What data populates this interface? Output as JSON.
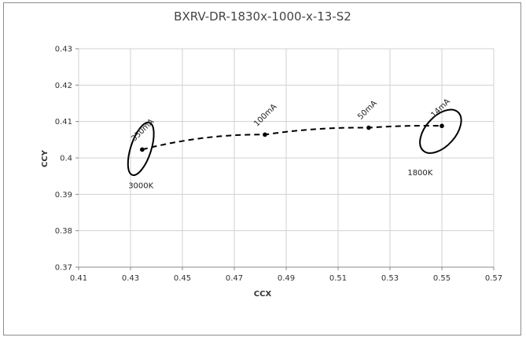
{
  "chart_data": {
    "type": "scatter",
    "title": "BXRV-DR-1830x-1000-x-13-S2",
    "xlabel": "CCX",
    "ylabel": "CCY",
    "xlim": [
      0.41,
      0.57
    ],
    "ylim": [
      0.37,
      0.43
    ],
    "xticks": [
      0.41,
      0.43,
      0.45,
      0.47,
      0.49,
      0.51,
      0.53,
      0.55,
      0.57
    ],
    "yticks": [
      0.37,
      0.38,
      0.39,
      0.4,
      0.41,
      0.42,
      0.43
    ],
    "grid": true,
    "series": [
      {
        "line_style": "dashed",
        "points": [
          {
            "x": 0.4345,
            "y": 0.4023,
            "label": "350mA"
          },
          {
            "x": 0.4818,
            "y": 0.4064,
            "label": "100mA"
          },
          {
            "x": 0.5218,
            "y": 0.4083,
            "label": "50mA"
          },
          {
            "x": 0.55,
            "y": 0.4088,
            "label": "14mA"
          }
        ]
      }
    ],
    "ellipses": [
      {
        "center_x": 0.434,
        "center_y": 0.4025,
        "label": "3000K",
        "color": "#000000"
      },
      {
        "center_x": 0.5495,
        "center_y": 0.4073,
        "label": "1800K",
        "color": "#000000"
      }
    ],
    "colors": {
      "line": "#000000",
      "grid": "#d0d0d0",
      "axis": "#888888"
    }
  }
}
